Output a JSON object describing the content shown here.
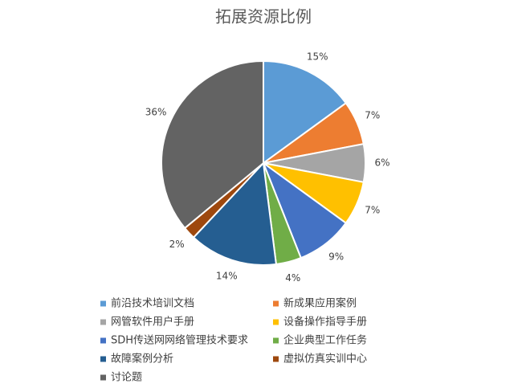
{
  "chart_data": {
    "type": "pie",
    "title": "拓展资源比例",
    "categories": [
      "前沿技术培训文档",
      "新成果应用案例",
      "网管软件用户手册",
      "设备操作指导手册",
      "SDH传送网网络管理技术要求",
      "企业典型工作任务",
      "故障案例分析",
      "虚拟仿真实训中心",
      "讨论题"
    ],
    "values": [
      15,
      7,
      6,
      7,
      9,
      4,
      14,
      2,
      36
    ],
    "value_labels": [
      "15%",
      "7%",
      "6%",
      "7%",
      "9%",
      "4%",
      "14%",
      "2%",
      "36%"
    ],
    "colors": [
      "#5b9bd5",
      "#ed7d31",
      "#a5a5a5",
      "#ffc000",
      "#4472c4",
      "#70ad47",
      "#255e91",
      "#9e480e",
      "#636363"
    ],
    "legend": "bottom"
  }
}
